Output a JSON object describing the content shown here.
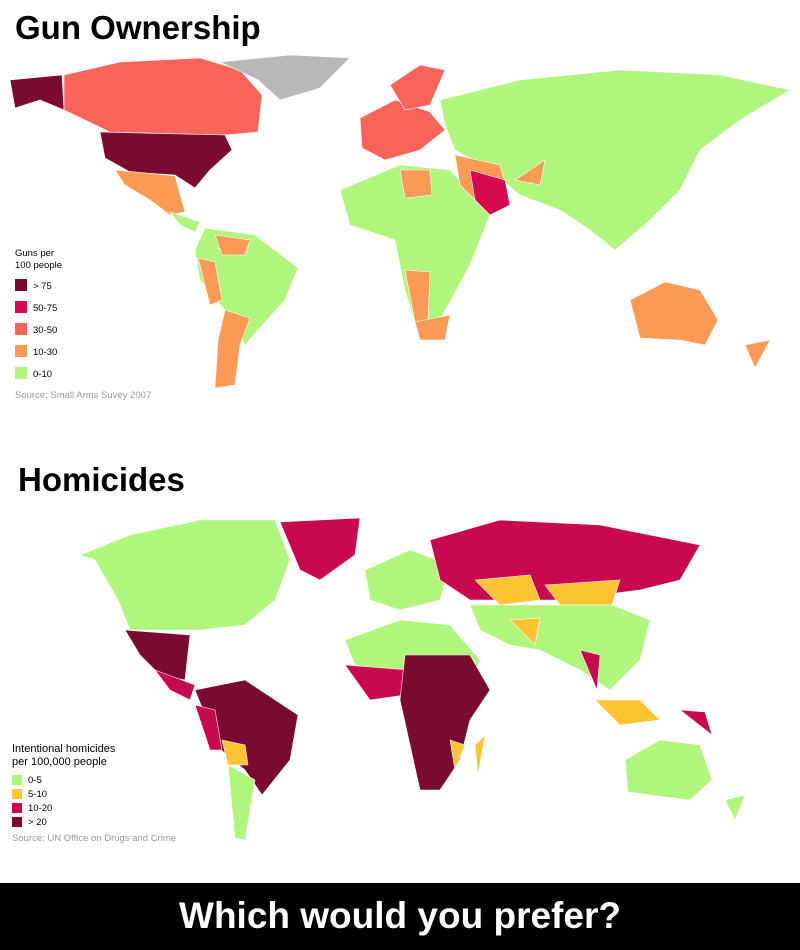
{
  "maps": [
    {
      "title": "Gun Ownership",
      "legend": {
        "title": [
          "Guns per",
          "100 people"
        ],
        "items": [
          {
            "label": "> 75",
            "color": "#7b0a2f"
          },
          {
            "label": "50-75",
            "color": "#d6094f"
          },
          {
            "label": "30-50",
            "color": "#f8645a"
          },
          {
            "label": "10-30",
            "color": "#fb9a55"
          },
          {
            "label": "0-10",
            "color": "#b0f67c"
          }
        ]
      },
      "source": "Source: Small Arms Suvey 2007"
    },
    {
      "title": "Homicides",
      "legend": {
        "title": [
          "Intentional homicides",
          "per 100,000 people"
        ],
        "items": [
          {
            "label": "0-5",
            "color": "#b0f67c"
          },
          {
            "label": "5-10",
            "color": "#fcc432"
          },
          {
            "label": "10-20",
            "color": "#c8094f"
          },
          {
            "label": "> 20",
            "color": "#7b0a2f"
          }
        ]
      },
      "source": "Source: UN Office on Drugs and Crime"
    }
  ],
  "caption": "Which would you prefer?"
}
